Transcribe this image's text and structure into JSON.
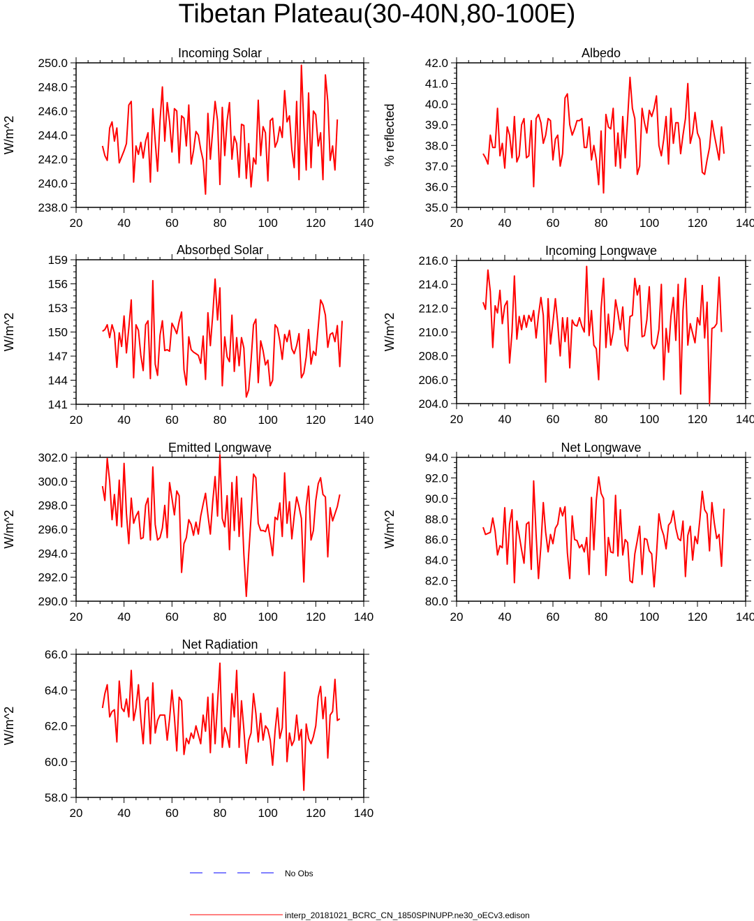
{
  "title": "Tibetan Plateau(30-40N,80-100E)",
  "colors": {
    "model": "#ff0000",
    "obs": "#0000ff",
    "axis": "#000000"
  },
  "legend": {
    "obs_label": "No Obs",
    "model_label": "interp_20181021_BCRC_CN_1850SPINUPP.ne30_oECv3.edison"
  },
  "chart_data": [
    {
      "type": "line",
      "title": "Incoming Solar",
      "xlabel": "",
      "ylabel": "W/m^2",
      "xlim": [
        20,
        140
      ],
      "ylim": [
        238,
        250
      ],
      "xticks": [
        "20",
        "40",
        "60",
        "80",
        "100",
        "120",
        "140"
      ],
      "yticks": [
        "238.0",
        "240.0",
        "242.0",
        "244.0",
        "246.0",
        "248.0",
        "250.0"
      ],
      "x_start": 31,
      "series": [
        {
          "name": "interp_20181021_BCRC_CN_1850SPINUPP.ne30_oECv3.edison",
          "values": [
            243.1,
            242.3,
            241.9,
            244.6,
            245.1,
            243.5,
            244.6,
            241.7,
            242.2,
            242.7,
            243.3,
            246.5,
            246.8,
            240.1,
            243.1,
            242.4,
            243.4,
            242.1,
            243.5,
            244.2,
            240.1,
            246.2,
            243.5,
            241.0,
            245.2,
            248.0,
            243.5,
            246.7,
            245.1,
            242.6,
            246.2,
            246.0,
            241.7,
            245.6,
            245.4,
            243.1,
            246.5,
            241.6,
            242.7,
            244.3,
            244.0,
            242.8,
            241.9,
            239.1,
            245.8,
            242.0,
            244.4,
            246.8,
            245.2,
            239.9,
            246.3,
            242.3,
            245.2,
            246.7,
            242.0,
            243.9,
            243.3,
            240.5,
            244.9,
            244.8,
            240.4,
            243.3,
            239.7,
            242.1,
            241.6,
            246.9,
            242.3,
            244.7,
            244.2,
            240.2,
            245.2,
            245.4,
            243.0,
            243.5,
            244.7,
            243.8,
            247.7,
            245.1,
            245.6,
            242.8,
            241.3,
            246.8,
            240.3,
            249.8,
            244.8,
            241.1,
            247.5,
            241.3,
            246.0,
            245.7,
            243.1,
            244.2,
            240.3,
            249.0,
            246.8,
            241.9,
            243.1,
            241.1,
            245.3
          ]
        }
      ]
    },
    {
      "type": "line",
      "title": "Albedo",
      "xlabel": "",
      "ylabel": "% reflected",
      "xlim": [
        20,
        140
      ],
      "ylim": [
        35,
        42
      ],
      "xticks": [
        "20",
        "40",
        "60",
        "80",
        "100",
        "120",
        "140"
      ],
      "yticks": [
        "35.0",
        "36.0",
        "37.0",
        "38.0",
        "39.0",
        "40.0",
        "41.0",
        "42.0"
      ],
      "x_start": 31,
      "series": [
        {
          "name": "interp_20181021_BCRC_CN_1850SPINUPP.ne30_oECv3.edison",
          "values": [
            37.6,
            37.4,
            37.1,
            38.5,
            37.9,
            37.9,
            39.8,
            37.5,
            38.1,
            36.9,
            38.9,
            38.5,
            37.4,
            39.4,
            37.2,
            37.5,
            39.0,
            39.3,
            37.4,
            37.5,
            39.2,
            36.0,
            39.3,
            39.5,
            39.1,
            38.1,
            38.5,
            39.3,
            39.2,
            37.3,
            38.3,
            38.5,
            37.0,
            37.6,
            40.3,
            40.5,
            39.0,
            38.5,
            38.8,
            39.2,
            39.2,
            39.3,
            37.9,
            37.9,
            38.9,
            37.3,
            38.0,
            37.3,
            36.1,
            38.7,
            35.7,
            39.5,
            38.9,
            38.8,
            39.8,
            37.0,
            38.6,
            36.9,
            39.4,
            37.4,
            39.3,
            41.3,
            39.8,
            39.3,
            36.6,
            37.0,
            39.8,
            39.1,
            38.6,
            39.7,
            39.4,
            39.8,
            40.4,
            38.0,
            37.5,
            38.3,
            39.4,
            37.1,
            39.8,
            38.1,
            39.1,
            39.1,
            37.6,
            38.5,
            39.3,
            41.0,
            38.1,
            38.6,
            39.6,
            38.6,
            38.3,
            36.7,
            36.6,
            37.3,
            37.9,
            39.2,
            38.5,
            37.9,
            37.3,
            38.9,
            37.6
          ]
        }
      ]
    },
    {
      "type": "line",
      "title": "Absorbed Solar",
      "xlabel": "",
      "ylabel": "W/m^2",
      "xlim": [
        20,
        140
      ],
      "ylim": [
        141,
        159
      ],
      "xticks": [
        "20",
        "40",
        "60",
        "80",
        "100",
        "120",
        "140"
      ],
      "yticks": [
        "141",
        "144",
        "147",
        "150",
        "153",
        "156",
        "159"
      ],
      "x_start": 31,
      "series": [
        {
          "name": "interp_20181021_BCRC_CN_1850SPINUPP.ne30_oECv3.edison",
          "values": [
            150.1,
            150.3,
            150.9,
            149.3,
            150.9,
            149.9,
            145.6,
            149.9,
            148.2,
            152.0,
            147.4,
            150.5,
            154.0,
            144.3,
            150.9,
            150.2,
            147.1,
            145.2,
            150.9,
            151.4,
            144.2,
            156.4,
            146.0,
            144.6,
            149.6,
            151.4,
            147.7,
            147.8,
            147.6,
            151.1,
            150.5,
            149.8,
            151.3,
            152.5,
            145.3,
            143.4,
            149.4,
            147.8,
            147.5,
            147.3,
            147.1,
            146.1,
            149.5,
            144.1,
            152.4,
            148.3,
            152.1,
            156.6,
            151.5,
            155.5,
            143.3,
            149.4,
            146.9,
            146.3,
            152.1,
            145.1,
            149.3,
            145.8,
            149.3,
            148.0,
            141.9,
            142.8,
            146.4,
            150.9,
            151.6,
            143.7,
            148.9,
            147.7,
            145.9,
            146.5,
            143.3,
            144.0,
            150.9,
            150.5,
            148.9,
            146.6,
            149.7,
            148.8,
            150.2,
            147.9,
            147.3,
            148.3,
            149.8,
            144.3,
            144.9,
            146.9,
            150.3,
            146.0,
            147.6,
            147.1,
            150.6,
            154.0,
            153.4,
            152.1,
            148.1,
            149.7,
            149.9,
            148.8,
            150.8,
            145.7,
            151.4
          ]
        }
      ]
    },
    {
      "type": "line",
      "title": "Incoming Longwave",
      "xlabel": "",
      "ylabel": "W/m^2",
      "xlim": [
        20,
        140
      ],
      "ylim": [
        204,
        216
      ],
      "xticks": [
        "20",
        "40",
        "60",
        "80",
        "100",
        "120",
        "140"
      ],
      "yticks": [
        "204.0",
        "206.0",
        "208.0",
        "210.0",
        "212.0",
        "214.0",
        "216.0"
      ],
      "x_start": 31,
      "series": [
        {
          "name": "interp_20181021_BCRC_CN_1850SPINUPP.ne30_oECv3.edison",
          "values": [
            212.5,
            211.9,
            215.2,
            213.4,
            208.7,
            212.2,
            211.6,
            213.5,
            210.7,
            212.2,
            212.6,
            207.4,
            210.0,
            214.7,
            209.4,
            211.3,
            210.2,
            211.4,
            210.4,
            211.4,
            210.9,
            211.8,
            209.5,
            211.4,
            212.9,
            211.4,
            205.8,
            212.8,
            209.0,
            210.8,
            212.8,
            210.7,
            208.0,
            211.2,
            209.2,
            211.2,
            207.0,
            211.0,
            210.6,
            210.5,
            211.2,
            210.5,
            210.0,
            215.5,
            209.7,
            211.8,
            208.9,
            208.6,
            206.0,
            212.0,
            214.5,
            208.7,
            211.5,
            208.9,
            210.0,
            212.7,
            211.6,
            210.2,
            212.1,
            208.9,
            208.4,
            211.3,
            211.4,
            214.5,
            213.1,
            213.9,
            209.6,
            209.7,
            211.0,
            213.8,
            209.0,
            208.6,
            209.0,
            210.2,
            214.0,
            206.0,
            210.3,
            208.3,
            211.3,
            212.9,
            209.3,
            214.0,
            204.8,
            211.8,
            214.5,
            208.9,
            210.7,
            209.9,
            209.1,
            211.2,
            210.6,
            213.9,
            209.5,
            212.5,
            204.0,
            210.3,
            210.4,
            210.7,
            214.6,
            210.0
          ]
        }
      ]
    },
    {
      "type": "line",
      "title": "Emitted Longwave",
      "xlabel": "",
      "ylabel": "W/m^2",
      "xlim": [
        20,
        140
      ],
      "ylim": [
        290,
        302
      ],
      "xticks": [
        "20",
        "40",
        "60",
        "80",
        "100",
        "120",
        "140"
      ],
      "yticks": [
        "290.0",
        "292.0",
        "294.0",
        "296.0",
        "298.0",
        "300.0",
        "302.0"
      ],
      "x_start": 31,
      "series": [
        {
          "name": "interp_20181021_BCRC_CN_1850SPINUPP.ne30_oECv3.edison",
          "values": [
            299.6,
            298.4,
            301.9,
            300.0,
            296.8,
            298.9,
            296.3,
            300.1,
            296.2,
            301.5,
            297.3,
            294.8,
            298.6,
            296.5,
            297.1,
            297.5,
            295.2,
            295.3,
            298.0,
            298.6,
            295.1,
            301.2,
            296.4,
            295.1,
            295.3,
            296.1,
            298.0,
            295.3,
            299.9,
            298.6,
            297.2,
            299.2,
            298.8,
            292.4,
            294.8,
            295.3,
            296.8,
            296.4,
            295.5,
            296.6,
            295.6,
            297.1,
            298.1,
            299.0,
            297.2,
            295.6,
            298.3,
            300.4,
            297.1,
            302.2,
            296.9,
            296.2,
            298.8,
            294.3,
            299.9,
            295.9,
            300.4,
            295.4,
            298.6,
            293.9,
            290.4,
            293.9,
            297.0,
            300.6,
            300.3,
            296.5,
            295.9,
            295.9,
            295.8,
            296.4,
            295.2,
            293.8,
            297.0,
            296.8,
            298.2,
            295.4,
            300.7,
            296.5,
            298.3,
            295.2,
            297.1,
            298.7,
            297.9,
            296.9,
            291.6,
            297.9,
            299.6,
            295.1,
            295.9,
            298.4,
            299.8,
            300.3,
            298.9,
            298.7,
            293.7,
            297.8,
            296.7,
            297.3,
            297.9,
            298.9
          ]
        }
      ]
    },
    {
      "type": "line",
      "title": "Net Longwave",
      "xlabel": "",
      "ylabel": "W/m^2",
      "xlim": [
        20,
        140
      ],
      "ylim": [
        80,
        94
      ],
      "xticks": [
        "20",
        "40",
        "60",
        "80",
        "100",
        "120",
        "140"
      ],
      "yticks": [
        "80.0",
        "82.0",
        "84.0",
        "86.0",
        "88.0",
        "90.0",
        "92.0",
        "94.0"
      ],
      "x_start": 31,
      "series": [
        {
          "name": "interp_20181021_BCRC_CN_1850SPINUPP.ne30_oECv3.edison",
          "values": [
            87.2,
            86.5,
            86.6,
            86.7,
            88.1,
            86.8,
            84.5,
            85.4,
            85.2,
            89.1,
            83.6,
            87.5,
            88.9,
            81.8,
            87.8,
            86.4,
            85.0,
            83.7,
            87.5,
            87.7,
            83.1,
            91.7,
            86.5,
            82.2,
            85.4,
            89.6,
            86.7,
            84.8,
            86.5,
            85.6,
            87.1,
            87.5,
            89.1,
            88.3,
            89.2,
            84.7,
            82.2,
            88.3,
            86.0,
            85.9,
            85.2,
            85.5,
            84.8,
            86.2,
            82.6,
            90.1,
            85.0,
            89.8,
            92.1,
            90.5,
            90.0,
            82.5,
            86.2,
            84.8,
            84.7,
            90.3,
            84.4,
            88.9,
            84.5,
            86.0,
            85.7,
            82.0,
            81.8,
            84.6,
            85.9,
            87.3,
            82.6,
            86.1,
            86.0,
            84.9,
            84.6,
            81.4,
            84.5,
            88.5,
            87.1,
            86.4,
            85.1,
            87.4,
            87.7,
            88.8,
            87.1,
            86.1,
            85.9,
            87.8,
            82.4,
            86.4,
            87.3,
            84.0,
            86.3,
            85.6,
            88.0,
            90.7,
            88.9,
            88.5,
            84.9,
            89.6,
            87.6,
            86.1,
            86.5,
            83.4,
            89.0
          ]
        }
      ]
    },
    {
      "type": "line",
      "title": "Net Radiation",
      "xlabel": "",
      "ylabel": "W/m^2",
      "xlim": [
        20,
        140
      ],
      "ylim": [
        58,
        66
      ],
      "xticks": [
        "20",
        "40",
        "60",
        "80",
        "100",
        "120",
        "140"
      ],
      "yticks": [
        "58.0",
        "60.0",
        "62.0",
        "64.0",
        "66.0"
      ],
      "x_start": 31,
      "series": [
        {
          "name": "interp_20181021_BCRC_CN_1850SPINUPP.ne30_oECv3.edison",
          "values": [
            63.0,
            63.8,
            64.3,
            62.5,
            62.8,
            62.9,
            61.1,
            64.5,
            63.0,
            62.8,
            63.5,
            62.5,
            65.1,
            62.3,
            63.0,
            64.3,
            62.4,
            61.0,
            63.4,
            63.6,
            61.0,
            64.4,
            61.6,
            62.3,
            62.6,
            62.6,
            62.6,
            61.2,
            62.4,
            64.0,
            62.5,
            60.6,
            63.6,
            63.4,
            60.4,
            61.3,
            61.0,
            61.6,
            61.3,
            62.0,
            61.5,
            61.0,
            62.6,
            61.7,
            63.6,
            60.5,
            63.8,
            61.0,
            63.3,
            65.5,
            60.8,
            61.9,
            61.5,
            60.8,
            63.8,
            62.5,
            65.1,
            60.8,
            63.4,
            61.8,
            59.9,
            61.2,
            61.6,
            63.8,
            62.7,
            61.1,
            62.7,
            61.2,
            62.0,
            61.8,
            61.2,
            59.8,
            61.7,
            63.0,
            61.3,
            61.9,
            65.0,
            60.0,
            61.6,
            60.9,
            61.2,
            62.6,
            61.2,
            61.8,
            58.4,
            62.1,
            61.3,
            61.0,
            61.4,
            62.0,
            63.6,
            64.2,
            62.4,
            63.6,
            60.2,
            62.6,
            62.8,
            64.6,
            62.3,
            62.4
          ]
        }
      ]
    }
  ]
}
